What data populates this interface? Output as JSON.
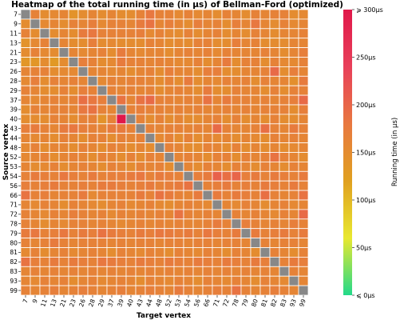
{
  "chart_data": {
    "type": "heatmap",
    "title": "Heatmap of the total running time (in μs) of Bellman-Ford (optimized)",
    "xlabel": "Target vertex",
    "ylabel": "Source vertex",
    "vertices": [
      "7",
      "9",
      "11",
      "13",
      "21",
      "23",
      "26",
      "28",
      "29",
      "37",
      "39",
      "40",
      "43",
      "44",
      "48",
      "52",
      "53",
      "54",
      "56",
      "66",
      "71",
      "72",
      "78",
      "79",
      "80",
      "81",
      "82",
      "83",
      "93",
      "99"
    ],
    "diagonal_color": "#888888",
    "colorbar": {
      "label": "Running time (in μs)",
      "min": 0,
      "max": 300,
      "ticks": [
        {
          "value": 0,
          "label": "⩽ 0μs"
        },
        {
          "value": 50,
          "label": "50μs"
        },
        {
          "value": 100,
          "label": "100μs"
        },
        {
          "value": 150,
          "label": "150μs"
        },
        {
          "value": 200,
          "label": "200μs"
        },
        {
          "value": 250,
          "label": "250μs"
        },
        {
          "value": 300,
          "label": "⩾ 300μs"
        }
      ],
      "colors": [
        "#22d98a",
        "#e8e830",
        "#e0a020",
        "#e87840",
        "#e8405a",
        "#e0184a"
      ]
    },
    "values": [
      [
        null,
        165,
        150,
        155,
        160,
        140,
        150,
        160,
        150,
        160,
        150,
        150,
        165,
        180,
        165,
        165,
        155,
        165,
        155,
        160,
        150,
        165,
        160,
        150,
        165,
        160,
        165,
        165,
        150,
        155
      ],
      [
        150,
        null,
        155,
        160,
        150,
        165,
        160,
        170,
        155,
        165,
        165,
        160,
        175,
        185,
        160,
        170,
        160,
        150,
        170,
        160,
        165,
        150,
        170,
        160,
        180,
        160,
        150,
        165,
        155,
        160
      ],
      [
        165,
        150,
        null,
        150,
        160,
        150,
        175,
        180,
        165,
        165,
        165,
        165,
        170,
        155,
        165,
        155,
        150,
        165,
        150,
        160,
        165,
        150,
        160,
        150,
        165,
        160,
        150,
        160,
        160,
        165
      ],
      [
        140,
        155,
        165,
        null,
        160,
        150,
        150,
        170,
        150,
        155,
        150,
        150,
        150,
        165,
        160,
        150,
        155,
        150,
        165,
        165,
        150,
        150,
        170,
        160,
        165,
        150,
        150,
        150,
        160,
        160
      ],
      [
        150,
        165,
        155,
        150,
        null,
        160,
        155,
        160,
        165,
        150,
        175,
        160,
        155,
        160,
        160,
        150,
        160,
        165,
        160,
        165,
        155,
        165,
        160,
        160,
        160,
        165,
        160,
        150,
        160,
        170
      ],
      [
        135,
        135,
        150,
        130,
        150,
        null,
        170,
        165,
        150,
        155,
        175,
        165,
        165,
        160,
        165,
        160,
        155,
        155,
        165,
        150,
        160,
        175,
        150,
        165,
        165,
        150,
        165,
        155,
        155,
        165
      ],
      [
        160,
        165,
        165,
        150,
        155,
        155,
        null,
        160,
        160,
        155,
        160,
        150,
        160,
        165,
        150,
        170,
        160,
        160,
        150,
        170,
        170,
        150,
        150,
        160,
        160,
        165,
        195,
        150,
        170,
        160
      ],
      [
        155,
        170,
        150,
        165,
        160,
        165,
        160,
        null,
        155,
        165,
        160,
        165,
        165,
        160,
        150,
        165,
        150,
        175,
        150,
        160,
        155,
        165,
        160,
        165,
        150,
        165,
        160,
        160,
        145,
        175
      ],
      [
        165,
        160,
        150,
        150,
        165,
        150,
        170,
        165,
        null,
        165,
        160,
        165,
        160,
        165,
        150,
        160,
        165,
        160,
        150,
        175,
        150,
        150,
        165,
        160,
        160,
        150,
        165,
        150,
        165,
        165
      ],
      [
        160,
        155,
        160,
        165,
        160,
        165,
        190,
        180,
        170,
        null,
        185,
        160,
        185,
        195,
        165,
        165,
        160,
        165,
        160,
        185,
        160,
        175,
        165,
        165,
        160,
        165,
        160,
        165,
        170,
        195
      ],
      [
        150,
        165,
        160,
        165,
        165,
        160,
        180,
        185,
        165,
        160,
        null,
        165,
        170,
        165,
        165,
        160,
        165,
        160,
        165,
        160,
        160,
        165,
        160,
        165,
        160,
        165,
        165,
        165,
        150,
        170
      ],
      [
        150,
        150,
        150,
        165,
        160,
        150,
        165,
        165,
        140,
        165,
        300,
        null,
        165,
        150,
        165,
        150,
        160,
        150,
        150,
        160,
        165,
        150,
        165,
        150,
        160,
        150,
        165,
        150,
        150,
        160
      ],
      [
        170,
        175,
        165,
        160,
        175,
        180,
        170,
        165,
        160,
        175,
        175,
        165,
        null,
        165,
        160,
        165,
        165,
        160,
        165,
        160,
        195,
        165,
        160,
        160,
        165,
        190,
        165,
        160,
        175,
        165
      ],
      [
        160,
        155,
        160,
        150,
        165,
        160,
        150,
        165,
        165,
        150,
        165,
        160,
        165,
        null,
        155,
        165,
        150,
        165,
        150,
        160,
        155,
        160,
        150,
        160,
        155,
        150,
        165,
        160,
        165,
        160
      ],
      [
        155,
        165,
        150,
        160,
        160,
        150,
        165,
        160,
        150,
        165,
        160,
        150,
        160,
        150,
        null,
        165,
        160,
        150,
        150,
        165,
        160,
        150,
        165,
        150,
        160,
        150,
        160,
        150,
        155,
        160
      ],
      [
        155,
        160,
        165,
        150,
        160,
        165,
        160,
        150,
        165,
        160,
        150,
        165,
        150,
        165,
        160,
        null,
        160,
        165,
        160,
        150,
        165,
        165,
        150,
        165,
        160,
        165,
        185,
        165,
        160,
        150
      ],
      [
        160,
        150,
        155,
        165,
        150,
        160,
        165,
        160,
        150,
        165,
        160,
        150,
        165,
        160,
        165,
        150,
        null,
        160,
        150,
        165,
        160,
        150,
        165,
        160,
        150,
        165,
        160,
        150,
        165,
        160
      ],
      [
        165,
        175,
        170,
        165,
        180,
        170,
        165,
        175,
        165,
        170,
        170,
        175,
        180,
        165,
        175,
        170,
        165,
        null,
        170,
        175,
        205,
        190,
        200,
        170,
        175,
        165,
        175,
        170,
        165,
        175
      ],
      [
        170,
        165,
        170,
        175,
        165,
        165,
        170,
        165,
        175,
        175,
        170,
        165,
        170,
        175,
        165,
        170,
        175,
        185,
        null,
        165,
        170,
        175,
        165,
        170,
        165,
        175,
        170,
        165,
        175,
        165
      ],
      [
        185,
        165,
        170,
        160,
        165,
        165,
        175,
        155,
        165,
        165,
        165,
        165,
        175,
        165,
        185,
        175,
        165,
        160,
        175,
        null,
        175,
        165,
        175,
        170,
        165,
        190,
        165,
        160,
        165,
        185
      ],
      [
        160,
        155,
        165,
        160,
        150,
        165,
        160,
        155,
        150,
        160,
        165,
        155,
        160,
        165,
        155,
        150,
        160,
        165,
        160,
        155,
        null,
        160,
        155,
        165,
        160,
        150,
        160,
        165,
        155,
        160
      ],
      [
        165,
        160,
        155,
        165,
        160,
        170,
        165,
        160,
        165,
        155,
        165,
        160,
        165,
        160,
        165,
        160,
        185,
        165,
        160,
        165,
        160,
        null,
        165,
        160,
        165,
        160,
        155,
        165,
        160,
        195
      ],
      [
        165,
        160,
        150,
        160,
        155,
        165,
        165,
        160,
        165,
        160,
        155,
        160,
        165,
        160,
        165,
        160,
        165,
        160,
        160,
        165,
        175,
        165,
        null,
        170,
        165,
        160,
        165,
        160,
        170,
        165
      ],
      [
        175,
        180,
        165,
        170,
        180,
        165,
        175,
        170,
        185,
        175,
        170,
        165,
        175,
        170,
        180,
        175,
        170,
        175,
        165,
        180,
        170,
        165,
        175,
        null,
        175,
        165,
        170,
        175,
        165,
        175
      ],
      [
        165,
        160,
        165,
        175,
        165,
        160,
        165,
        165,
        165,
        160,
        165,
        160,
        165,
        165,
        160,
        165,
        165,
        160,
        165,
        165,
        160,
        165,
        165,
        160,
        null,
        165,
        160,
        165,
        165,
        160
      ],
      [
        155,
        165,
        150,
        160,
        165,
        155,
        160,
        165,
        160,
        150,
        165,
        160,
        155,
        165,
        160,
        150,
        165,
        160,
        155,
        165,
        160,
        150,
        165,
        160,
        150,
        null,
        165,
        160,
        150,
        165
      ],
      [
        185,
        170,
        165,
        175,
        165,
        175,
        170,
        165,
        180,
        175,
        170,
        165,
        175,
        170,
        165,
        175,
        170,
        165,
        175,
        170,
        165,
        175,
        170,
        165,
        175,
        170,
        null,
        165,
        175,
        170
      ],
      [
        160,
        165,
        160,
        165,
        160,
        165,
        160,
        165,
        160,
        165,
        160,
        165,
        160,
        165,
        160,
        165,
        160,
        165,
        160,
        165,
        160,
        165,
        160,
        165,
        160,
        165,
        160,
        null,
        165,
        160
      ],
      [
        160,
        155,
        165,
        160,
        165,
        150,
        160,
        165,
        155,
        160,
        165,
        160,
        150,
        165,
        160,
        155,
        165,
        160,
        150,
        165,
        160,
        155,
        165,
        160,
        150,
        165,
        160,
        155,
        null,
        160
      ],
      [
        165,
        160,
        165,
        170,
        160,
        165,
        170,
        165,
        160,
        165,
        170,
        160,
        165,
        170,
        165,
        160,
        175,
        165,
        160,
        165,
        170,
        165,
        185,
        165,
        160,
        165,
        170,
        165,
        160,
        null
      ]
    ]
  }
}
